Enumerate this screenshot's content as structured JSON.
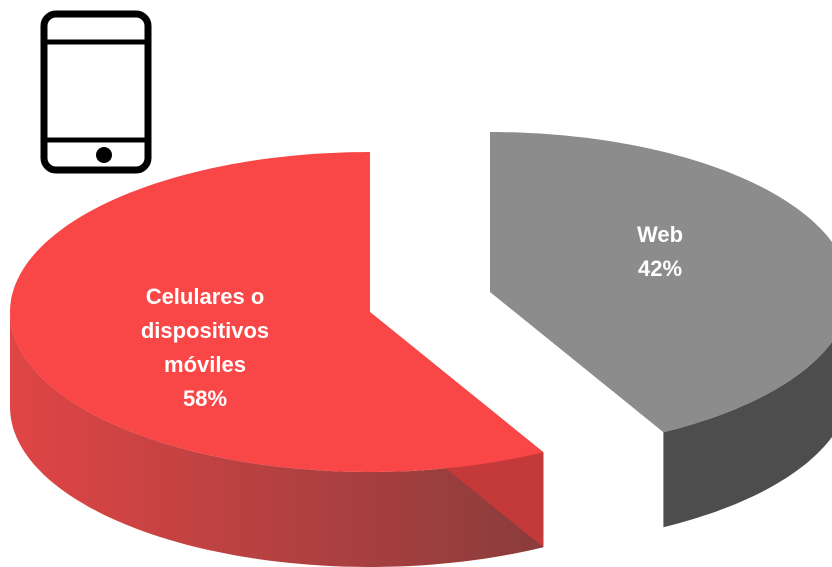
{
  "chart_data": {
    "type": "pie",
    "categories": [
      "Celulares o dispositivos móviles",
      "Web"
    ],
    "values": [
      58,
      42
    ],
    "value_labels": [
      "58%",
      "42%"
    ],
    "colors": [
      "#f94646",
      "#8c8c8c"
    ],
    "side_colors": [
      "#c43a3a",
      "#4d4d4d"
    ]
  }
}
